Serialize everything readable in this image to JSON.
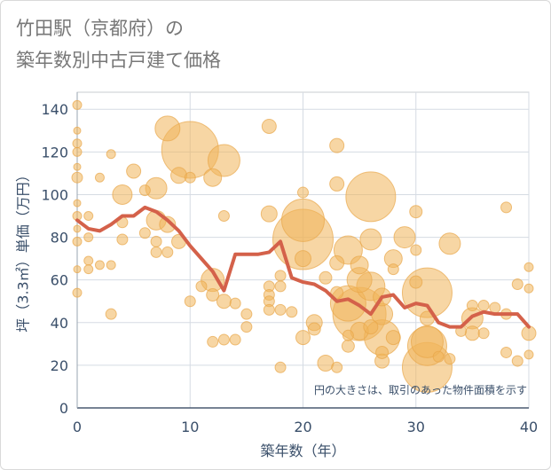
{
  "title_line1": "竹田駅（京都府）の",
  "title_line2": "築年数別中古戸建て価格",
  "chart_data": {
    "type": "scatter",
    "xlabel": "築年数（年）",
    "ylabel": "坪（3.3㎡）単価（万円）",
    "xlim": [
      0,
      40
    ],
    "ylim": [
      0,
      148
    ],
    "xticks": [
      0,
      10,
      20,
      30,
      40
    ],
    "yticks": [
      0,
      20,
      40,
      60,
      80,
      100,
      120,
      140
    ],
    "grid": true,
    "annotation": "円の大きさは、取引のあった物件面積を示す",
    "bubble_color": "#f0b45a",
    "line_color": "#d4614a",
    "average_line": {
      "x": [
        0,
        1,
        2,
        3,
        4,
        5,
        6,
        7,
        8,
        9,
        10,
        11,
        12,
        13,
        14,
        15,
        16,
        17,
        18,
        19,
        20,
        21,
        22,
        23,
        24,
        25,
        26,
        27,
        28,
        29,
        30,
        31,
        32,
        33,
        34,
        35,
        36,
        37,
        38,
        39,
        40
      ],
      "y": [
        88,
        84,
        83,
        86,
        90,
        90,
        94,
        92,
        88,
        83,
        76,
        70,
        64,
        55,
        72,
        72,
        72,
        73,
        78,
        61,
        59,
        58,
        55,
        50,
        51,
        48,
        44,
        52,
        53,
        47,
        49,
        48,
        40,
        38,
        38,
        43,
        45,
        44,
        44,
        44,
        38
      ]
    },
    "points": [
      {
        "x": 0,
        "y": 142,
        "size": 5
      },
      {
        "x": 0,
        "y": 130,
        "size": 4
      },
      {
        "x": 0,
        "y": 124,
        "size": 5
      },
      {
        "x": 0,
        "y": 120,
        "size": 5
      },
      {
        "x": 0,
        "y": 113,
        "size": 4
      },
      {
        "x": 0,
        "y": 108,
        "size": 6
      },
      {
        "x": 0,
        "y": 96,
        "size": 4
      },
      {
        "x": 0,
        "y": 90,
        "size": 5
      },
      {
        "x": 0,
        "y": 84,
        "size": 4
      },
      {
        "x": 0,
        "y": 78,
        "size": 5
      },
      {
        "x": 0,
        "y": 65,
        "size": 4
      },
      {
        "x": 0,
        "y": 54,
        "size": 5
      },
      {
        "x": 1,
        "y": 90,
        "size": 5
      },
      {
        "x": 1,
        "y": 80,
        "size": 5
      },
      {
        "x": 1,
        "y": 69,
        "size": 5
      },
      {
        "x": 1,
        "y": 65,
        "size": 5
      },
      {
        "x": 2,
        "y": 108,
        "size": 5
      },
      {
        "x": 2,
        "y": 67,
        "size": 5
      },
      {
        "x": 3,
        "y": 119,
        "size": 5
      },
      {
        "x": 3,
        "y": 67,
        "size": 5
      },
      {
        "x": 3,
        "y": 44,
        "size": 6
      },
      {
        "x": 4,
        "y": 100,
        "size": 11
      },
      {
        "x": 4,
        "y": 87,
        "size": 6
      },
      {
        "x": 4,
        "y": 79,
        "size": 6
      },
      {
        "x": 5,
        "y": 111,
        "size": 8
      },
      {
        "x": 6,
        "y": 102,
        "size": 6
      },
      {
        "x": 6,
        "y": 82,
        "size": 6
      },
      {
        "x": 7,
        "y": 103,
        "size": 12
      },
      {
        "x": 7,
        "y": 88,
        "size": 11
      },
      {
        "x": 7,
        "y": 78,
        "size": 6
      },
      {
        "x": 7,
        "y": 73,
        "size": 6
      },
      {
        "x": 8,
        "y": 131,
        "size": 14
      },
      {
        "x": 8,
        "y": 86,
        "size": 9
      },
      {
        "x": 8,
        "y": 73,
        "size": 6
      },
      {
        "x": 9,
        "y": 109,
        "size": 9
      },
      {
        "x": 9,
        "y": 78,
        "size": 8
      },
      {
        "x": 10,
        "y": 121,
        "size": 32
      },
      {
        "x": 10,
        "y": 108,
        "size": 6
      },
      {
        "x": 10,
        "y": 50,
        "size": 6
      },
      {
        "x": 11,
        "y": 57,
        "size": 6
      },
      {
        "x": 12,
        "y": 108,
        "size": 10
      },
      {
        "x": 12,
        "y": 60,
        "size": 13
      },
      {
        "x": 12,
        "y": 53,
        "size": 7
      },
      {
        "x": 12,
        "y": 31,
        "size": 6
      },
      {
        "x": 13,
        "y": 116,
        "size": 18
      },
      {
        "x": 13,
        "y": 90,
        "size": 6
      },
      {
        "x": 13,
        "y": 50,
        "size": 8
      },
      {
        "x": 13,
        "y": 32,
        "size": 6
      },
      {
        "x": 14,
        "y": 49,
        "size": 6
      },
      {
        "x": 14,
        "y": 32,
        "size": 6
      },
      {
        "x": 15,
        "y": 44,
        "size": 6
      },
      {
        "x": 15,
        "y": 38,
        "size": 6
      },
      {
        "x": 17,
        "y": 132,
        "size": 8
      },
      {
        "x": 17,
        "y": 91,
        "size": 9
      },
      {
        "x": 17,
        "y": 57,
        "size": 6
      },
      {
        "x": 17,
        "y": 53,
        "size": 6
      },
      {
        "x": 17,
        "y": 50,
        "size": 6
      },
      {
        "x": 17,
        "y": 46,
        "size": 6
      },
      {
        "x": 18,
        "y": 62,
        "size": 6
      },
      {
        "x": 18,
        "y": 57,
        "size": 6
      },
      {
        "x": 18,
        "y": 46,
        "size": 6
      },
      {
        "x": 18,
        "y": 19,
        "size": 6
      },
      {
        "x": 19,
        "y": 45,
        "size": 6
      },
      {
        "x": 20,
        "y": 101,
        "size": 6
      },
      {
        "x": 20,
        "y": 88,
        "size": 24
      },
      {
        "x": 20,
        "y": 79,
        "size": 34
      },
      {
        "x": 20,
        "y": 70,
        "size": 9
      },
      {
        "x": 20,
        "y": 33,
        "size": 8
      },
      {
        "x": 21,
        "y": 40,
        "size": 9
      },
      {
        "x": 21,
        "y": 37,
        "size": 7
      },
      {
        "x": 22,
        "y": 61,
        "size": 7
      },
      {
        "x": 22,
        "y": 21,
        "size": 9
      },
      {
        "x": 23,
        "y": 123,
        "size": 8
      },
      {
        "x": 23,
        "y": 105,
        "size": 8
      },
      {
        "x": 23,
        "y": 68,
        "size": 8
      },
      {
        "x": 23,
        "y": 54,
        "size": 7
      },
      {
        "x": 23,
        "y": 19,
        "size": 6
      },
      {
        "x": 24,
        "y": 74,
        "size": 16
      },
      {
        "x": 24,
        "y": 49,
        "size": 20
      },
      {
        "x": 24,
        "y": 34,
        "size": 6
      },
      {
        "x": 24,
        "y": 29,
        "size": 7
      },
      {
        "x": 25,
        "y": 67,
        "size": 10
      },
      {
        "x": 25,
        "y": 60,
        "size": 14
      },
      {
        "x": 25,
        "y": 44,
        "size": 30
      },
      {
        "x": 25,
        "y": 36,
        "size": 10
      },
      {
        "x": 26,
        "y": 99,
        "size": 28
      },
      {
        "x": 26,
        "y": 79,
        "size": 12
      },
      {
        "x": 26,
        "y": 57,
        "size": 16
      },
      {
        "x": 26,
        "y": 38,
        "size": 8
      },
      {
        "x": 27,
        "y": 52,
        "size": 10
      },
      {
        "x": 27,
        "y": 44,
        "size": 12
      },
      {
        "x": 27,
        "y": 33,
        "size": 20
      },
      {
        "x": 27,
        "y": 26,
        "size": 7
      },
      {
        "x": 27,
        "y": 22,
        "size": 8
      },
      {
        "x": 28,
        "y": 70,
        "size": 10
      },
      {
        "x": 28,
        "y": 65,
        "size": 6
      },
      {
        "x": 28,
        "y": 33,
        "size": 8
      },
      {
        "x": 29,
        "y": 80,
        "size": 12
      },
      {
        "x": 30,
        "y": 92,
        "size": 7
      },
      {
        "x": 30,
        "y": 74,
        "size": 6
      },
      {
        "x": 30,
        "y": 59,
        "size": 7
      },
      {
        "x": 31,
        "y": 54,
        "size": 28
      },
      {
        "x": 31,
        "y": 42,
        "size": 8
      },
      {
        "x": 31,
        "y": 31,
        "size": 18
      },
      {
        "x": 31,
        "y": 29,
        "size": 22
      },
      {
        "x": 31,
        "y": 19,
        "size": 28
      },
      {
        "x": 32,
        "y": 24,
        "size": 6
      },
      {
        "x": 33,
        "y": 77,
        "size": 12
      },
      {
        "x": 33,
        "y": 23,
        "size": 6
      },
      {
        "x": 34,
        "y": 36,
        "size": 6
      },
      {
        "x": 35,
        "y": 48,
        "size": 6
      },
      {
        "x": 35,
        "y": 42,
        "size": 12
      },
      {
        "x": 35,
        "y": 35,
        "size": 8
      },
      {
        "x": 36,
        "y": 48,
        "size": 6
      },
      {
        "x": 36,
        "y": 35,
        "size": 6
      },
      {
        "x": 37,
        "y": 47,
        "size": 6
      },
      {
        "x": 38,
        "y": 94,
        "size": 6
      },
      {
        "x": 38,
        "y": 44,
        "size": 6
      },
      {
        "x": 38,
        "y": 26,
        "size": 6
      },
      {
        "x": 39,
        "y": 58,
        "size": 6
      },
      {
        "x": 39,
        "y": 22,
        "size": 6
      },
      {
        "x": 40,
        "y": 66,
        "size": 5
      },
      {
        "x": 40,
        "y": 56,
        "size": 5
      },
      {
        "x": 40,
        "y": 35,
        "size": 8
      },
      {
        "x": 40,
        "y": 25,
        "size": 5
      }
    ]
  }
}
